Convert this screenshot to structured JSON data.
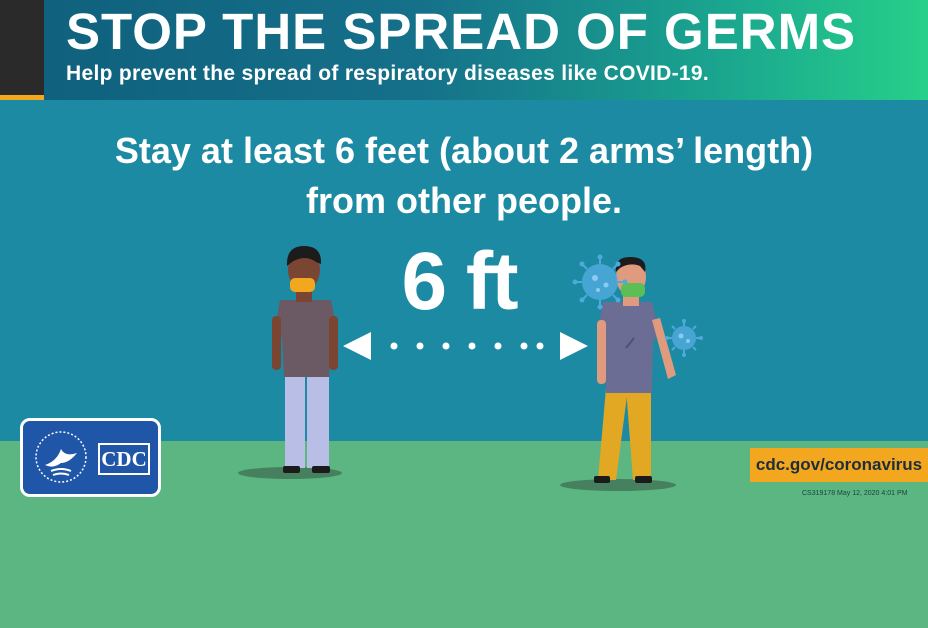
{
  "header": {
    "title": "STOP THE SPREAD OF GERMS",
    "subtitle": "Help prevent the spread of respiratory diseases like COVID-19."
  },
  "message": {
    "line1": "Stay at least 6 feet (about 2 arms’ length)",
    "line2": "from other people."
  },
  "distance": {
    "label": "6 ft"
  },
  "logo": {
    "agency": "CDC"
  },
  "footer": {
    "url": "cdc.gov/coronavirus",
    "code": "CS319178  May 12, 2020 4:01 PM"
  },
  "colors": {
    "sky": "#1c8aa3",
    "ground": "#5bb682",
    "accent": "#f2a71e",
    "logo_blue": "#1f56a8"
  },
  "icons": [
    "arrow-left-icon",
    "arrow-right-icon",
    "virus-icon",
    "hhs-eagle-icon"
  ]
}
